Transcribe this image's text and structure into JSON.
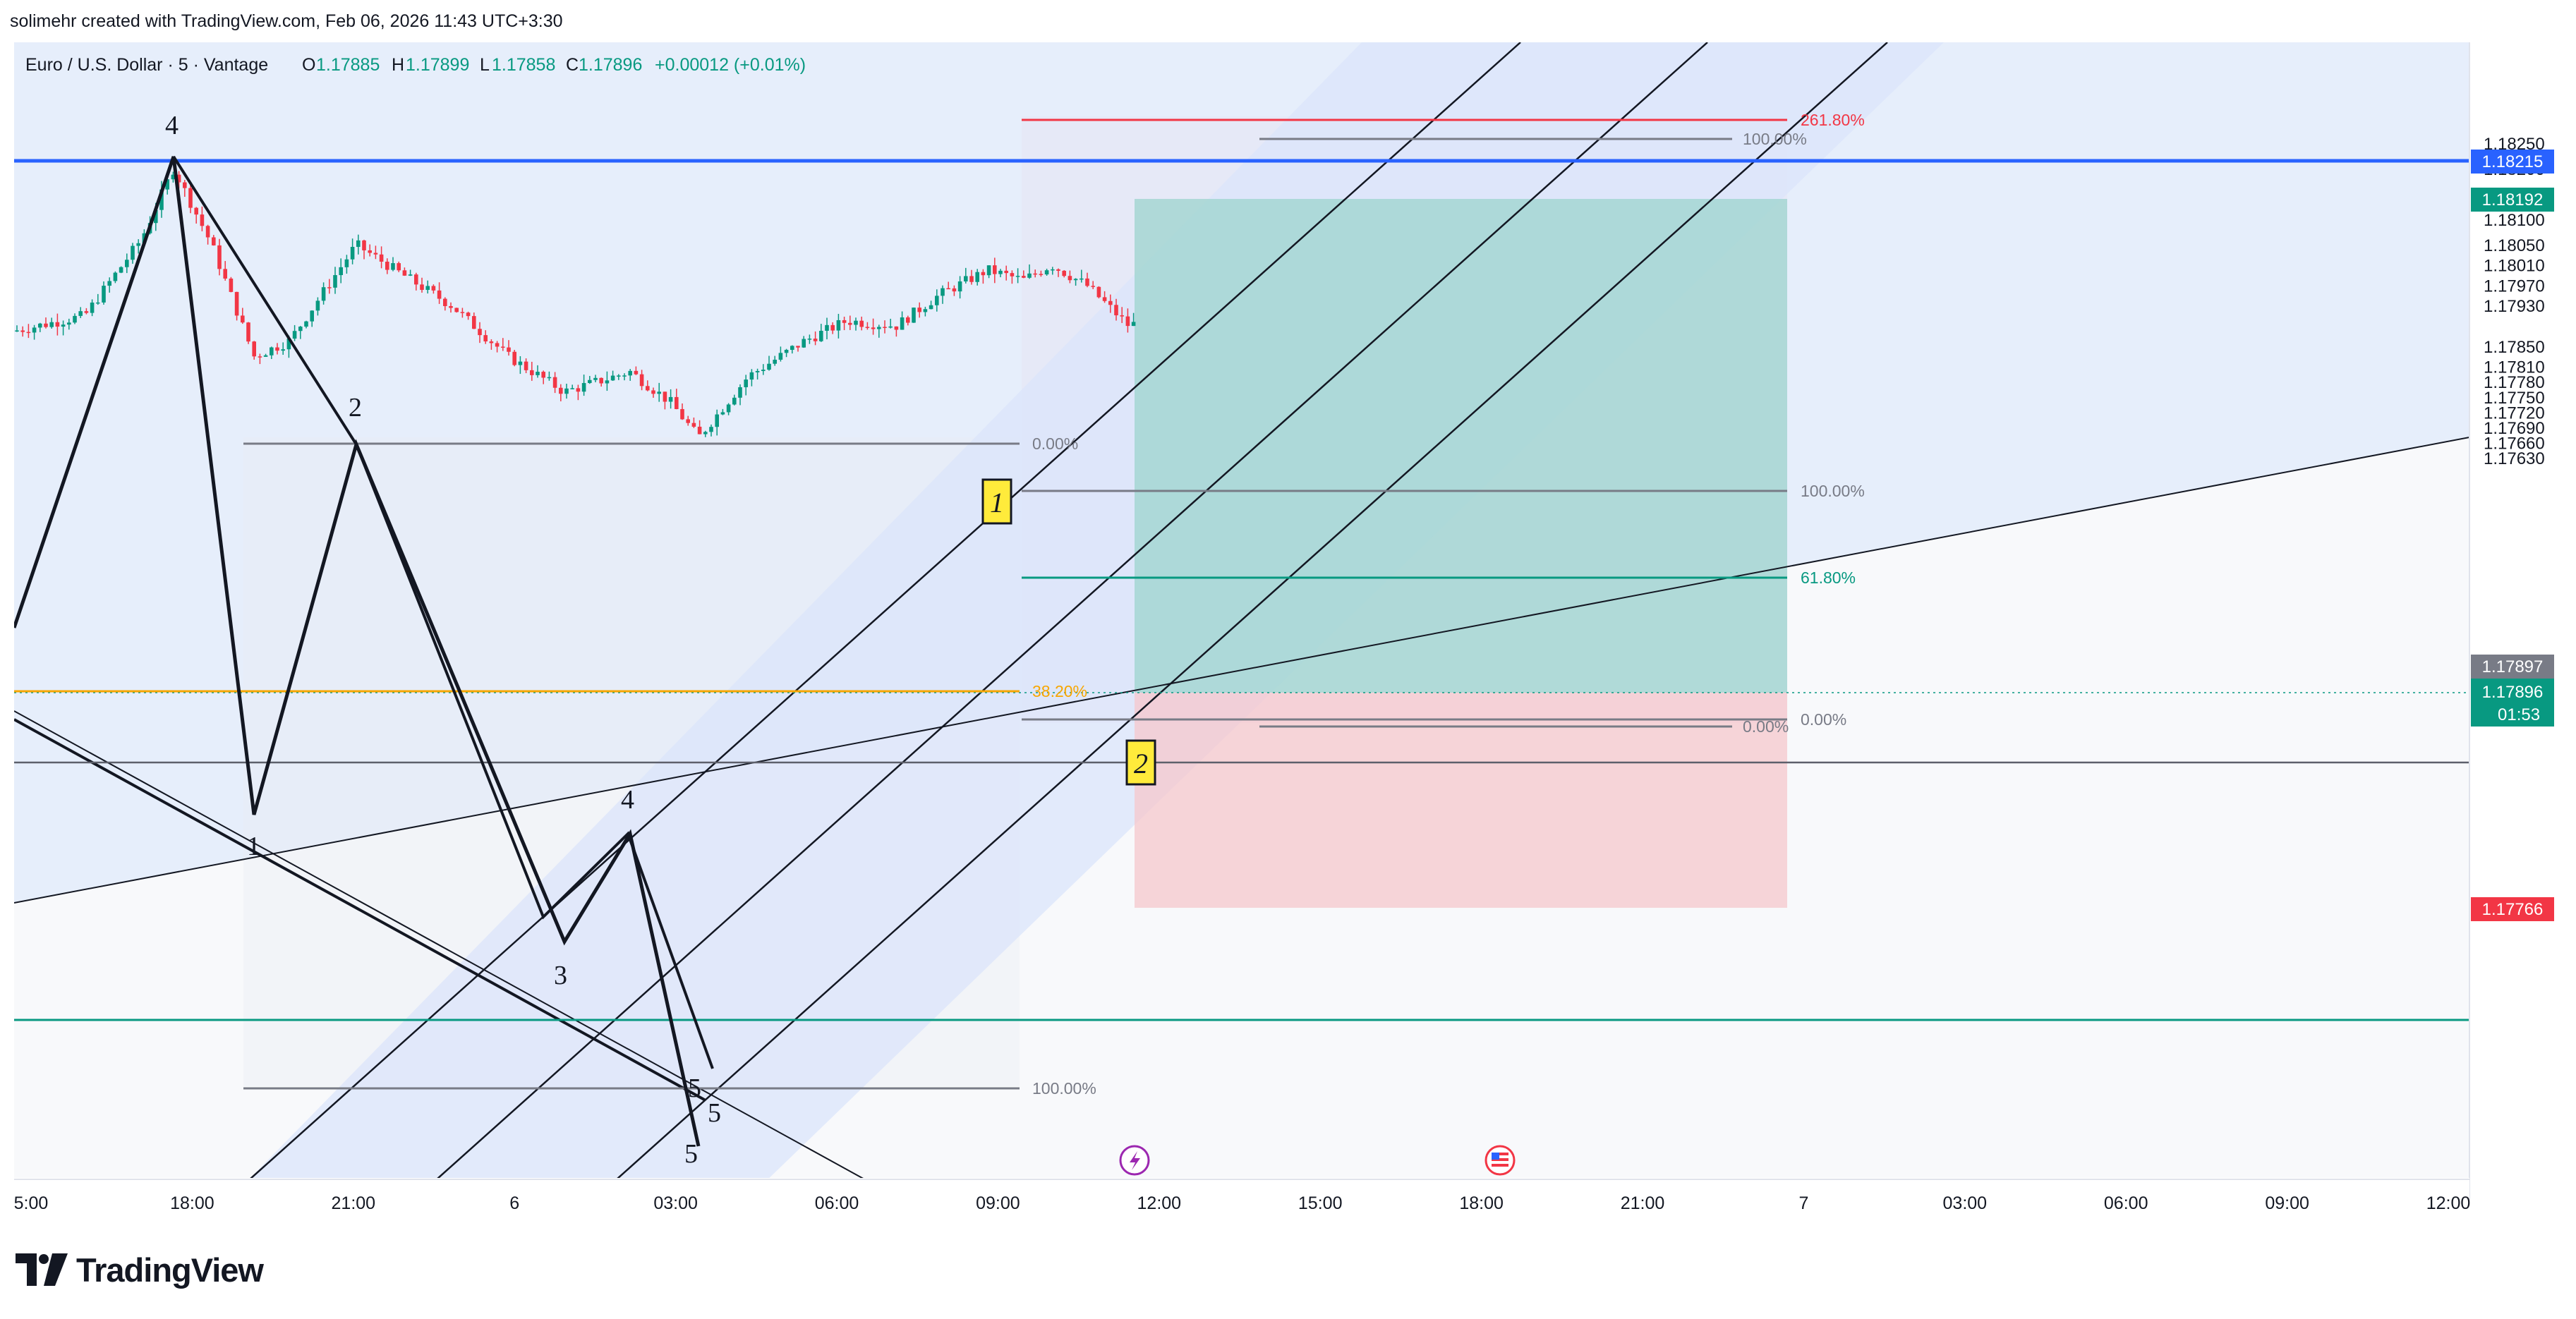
{
  "header": {
    "attribution": "solimehr created with TradingView.com, Feb 06, 2026 11:43 UTC+3:30"
  },
  "legend": {
    "symbol": "Euro / U.S. Dollar · 5 · Vantage",
    "o_label": "O",
    "o_value": "1.17885",
    "h_label": "H",
    "h_value": "1.17899",
    "l_label": "L",
    "l_value": "1.17858",
    "c_label": "C",
    "c_value": "1.17896",
    "change": "+0.00012 (+0.01%)"
  },
  "footer": {
    "brand": "TradingView"
  },
  "colors": {
    "up": "#089981",
    "down": "#f23645",
    "blue_level": "#2962ff",
    "green_level": "#089981",
    "fib_orange": "#f7a600",
    "fib_gray": "#787b86",
    "fib_red": "#f23645"
  },
  "chart_data": {
    "type": "candlestick",
    "symbol": "EURUSD",
    "timeframe": "5",
    "ylim": [
      1.1761,
      1.183
    ],
    "x_ticks": [
      "5:00",
      "18:00",
      "21:00",
      "6",
      "03:00",
      "06:00",
      "09:00",
      "12:00",
      "15:00",
      "18:00",
      "21:00",
      "7",
      "03:00",
      "06:00",
      "09:00",
      "12:00"
    ],
    "y_ticks": [
      "1.18250",
      "1.18200",
      "1.18150",
      "1.18100",
      "1.18050",
      "1.18010",
      "1.17970",
      "1.17930",
      "1.17850",
      "1.17810",
      "1.17780",
      "1.17750",
      "1.17720",
      "1.17690",
      "1.17660",
      "1.17630"
    ],
    "price_labels": [
      {
        "value": "1.18215",
        "kind": "blue-line"
      },
      {
        "value": "1.18192",
        "kind": "take-profit"
      },
      {
        "value": "1.17897",
        "kind": "last-gray"
      },
      {
        "value": "1.17896",
        "kind": "current",
        "countdown": "01:53"
      },
      {
        "value": "1.17766",
        "kind": "stop-loss"
      }
    ],
    "horizontal_levels": [
      {
        "price": 1.18215,
        "color": "blue"
      },
      {
        "price": 1.17855,
        "color": "gray"
      },
      {
        "price": 1.17701,
        "color": "green"
      }
    ],
    "fib_left": {
      "levels": [
        {
          "label": "0.00%",
          "price": 1.18047
        },
        {
          "label": "38.20%",
          "price": 1.17896
        },
        {
          "label": "100.00%",
          "price": 1.17661
        }
      ]
    },
    "fib_right": {
      "levels": [
        {
          "label": "261.80%",
          "price": 1.18228
        },
        {
          "label": "100.00%",
          "price": 1.18015
        },
        {
          "label": "61.80%",
          "price": 1.17963
        },
        {
          "label": "0.00%",
          "price": 1.1788
        }
      ]
    },
    "fib_small": {
      "levels": [
        {
          "label": "100.00%",
          "price": 1.18216
        },
        {
          "label": "0.00%",
          "price": 1.17874
        }
      ]
    },
    "position": {
      "entry": 1.17896,
      "take_profit": 1.18192,
      "stop_loss": 1.17766
    },
    "wave_labels": [
      "4",
      "2",
      "1",
      "3",
      "4",
      "5",
      "5",
      "5"
    ],
    "wave_labels_boxed": [
      "1",
      "2"
    ]
  }
}
